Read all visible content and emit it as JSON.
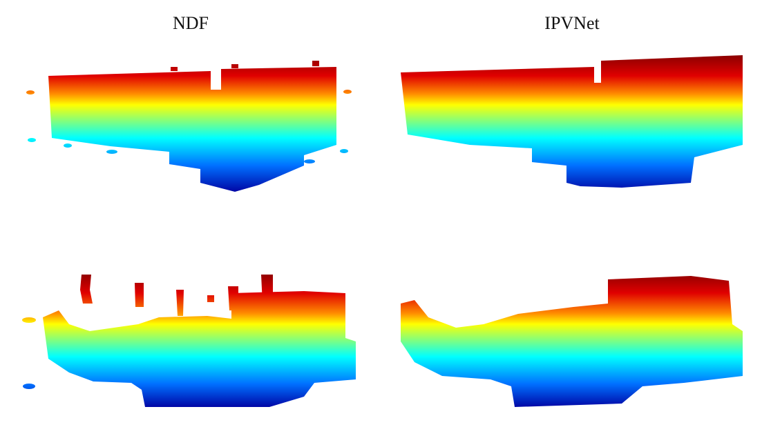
{
  "columns": [
    "NDF",
    "IPVNet"
  ]
}
